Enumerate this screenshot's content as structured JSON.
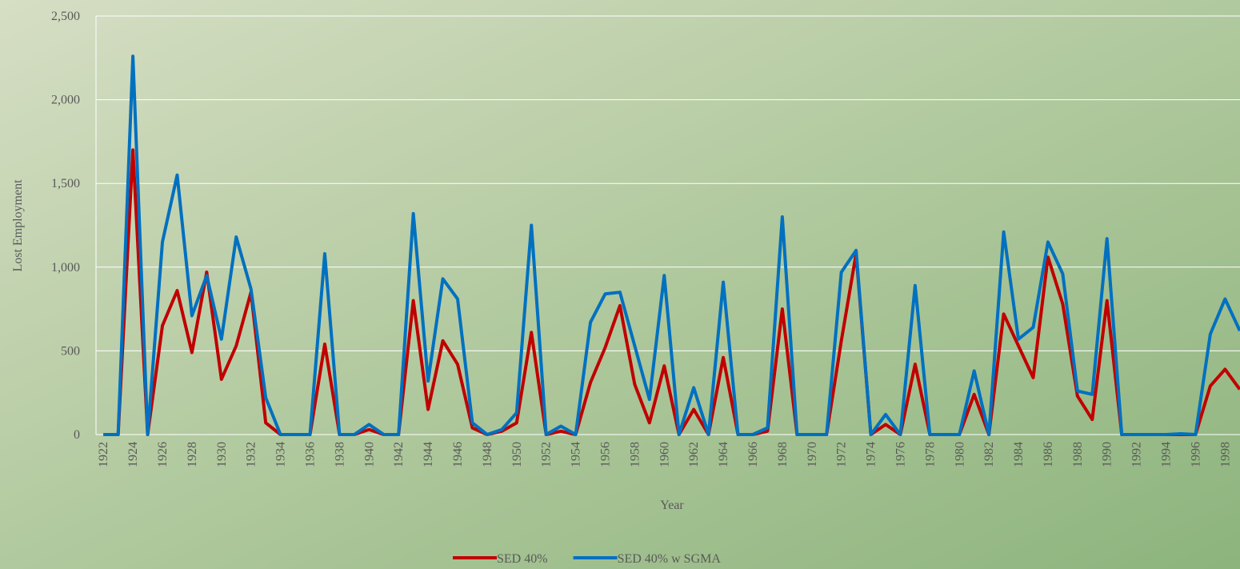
{
  "chart_data": {
    "type": "line",
    "x_label": "Year",
    "y_label": "Lost  Employment",
    "x": [
      1922,
      1923,
      1924,
      1925,
      1926,
      1927,
      1928,
      1929,
      1930,
      1931,
      1932,
      1933,
      1934,
      1935,
      1936,
      1937,
      1938,
      1939,
      1940,
      1941,
      1942,
      1943,
      1944,
      1945,
      1946,
      1947,
      1948,
      1949,
      1950,
      1951,
      1952,
      1953,
      1954,
      1955,
      1956,
      1957,
      1958,
      1959,
      1960,
      1961,
      1962,
      1963,
      1964,
      1965,
      1966,
      1967,
      1968,
      1969,
      1970,
      1971,
      1972,
      1973,
      1974,
      1975,
      1976,
      1977,
      1978,
      1979,
      1980,
      1981,
      1982,
      1983,
      1984,
      1985,
      1986,
      1987,
      1988,
      1989,
      1990,
      1991,
      1992,
      1993,
      1994,
      1995,
      1996,
      1997,
      1998,
      1999
    ],
    "series": [
      {
        "name": "SED 40%",
        "color": "#c00000",
        "values": [
          0,
          0,
          1700,
          0,
          650,
          860,
          490,
          970,
          330,
          530,
          850,
          70,
          0,
          0,
          0,
          540,
          0,
          0,
          30,
          0,
          0,
          800,
          150,
          560,
          420,
          40,
          0,
          20,
          70,
          610,
          0,
          20,
          0,
          310,
          520,
          770,
          300,
          70,
          410,
          0,
          150,
          0,
          460,
          0,
          0,
          20,
          750,
          0,
          0,
          0,
          560,
          1080,
          0,
          60,
          0,
          420,
          0,
          0,
          0,
          240,
          0,
          720,
          530,
          340,
          1060,
          780,
          230,
          90,
          800,
          0,
          0,
          0,
          0,
          0,
          0,
          290,
          390,
          270
        ]
      },
      {
        "name": "SED 40% w SGMA",
        "color": "#0070c0",
        "values": [
          0,
          0,
          2260,
          0,
          1150,
          1550,
          710,
          950,
          570,
          1180,
          870,
          220,
          0,
          0,
          0,
          1080,
          0,
          0,
          60,
          0,
          0,
          1320,
          320,
          930,
          810,
          70,
          0,
          30,
          130,
          1250,
          0,
          50,
          0,
          670,
          840,
          850,
          530,
          210,
          950,
          0,
          280,
          0,
          910,
          0,
          0,
          40,
          1300,
          0,
          0,
          0,
          970,
          1100,
          0,
          120,
          0,
          890,
          0,
          0,
          0,
          380,
          0,
          1210,
          570,
          640,
          1150,
          960,
          260,
          240,
          1170,
          0,
          0,
          0,
          0,
          5,
          0,
          600,
          810,
          620
        ]
      }
    ],
    "xlim": [
      1921.5,
      1999.5
    ],
    "xticks": [
      1922,
      1924,
      1926,
      1928,
      1930,
      1932,
      1934,
      1936,
      1938,
      1940,
      1942,
      1944,
      1946,
      1948,
      1950,
      1952,
      1954,
      1956,
      1958,
      1960,
      1962,
      1964,
      1966,
      1968,
      1970,
      1972,
      1974,
      1976,
      1978,
      1980,
      1982,
      1984,
      1986,
      1988,
      1990,
      1992,
      1994,
      1996,
      1998
    ],
    "ylim": [
      0,
      2500
    ],
    "yticks": [
      0,
      500,
      {
        "value": 1000,
        "label": "1,000"
      },
      {
        "value": 1500,
        "label": "1,500"
      },
      {
        "value": 2000,
        "label": "2,000"
      },
      {
        "value": 2500,
        "label": "2,500"
      }
    ],
    "grid": true,
    "legend": "bottom"
  }
}
